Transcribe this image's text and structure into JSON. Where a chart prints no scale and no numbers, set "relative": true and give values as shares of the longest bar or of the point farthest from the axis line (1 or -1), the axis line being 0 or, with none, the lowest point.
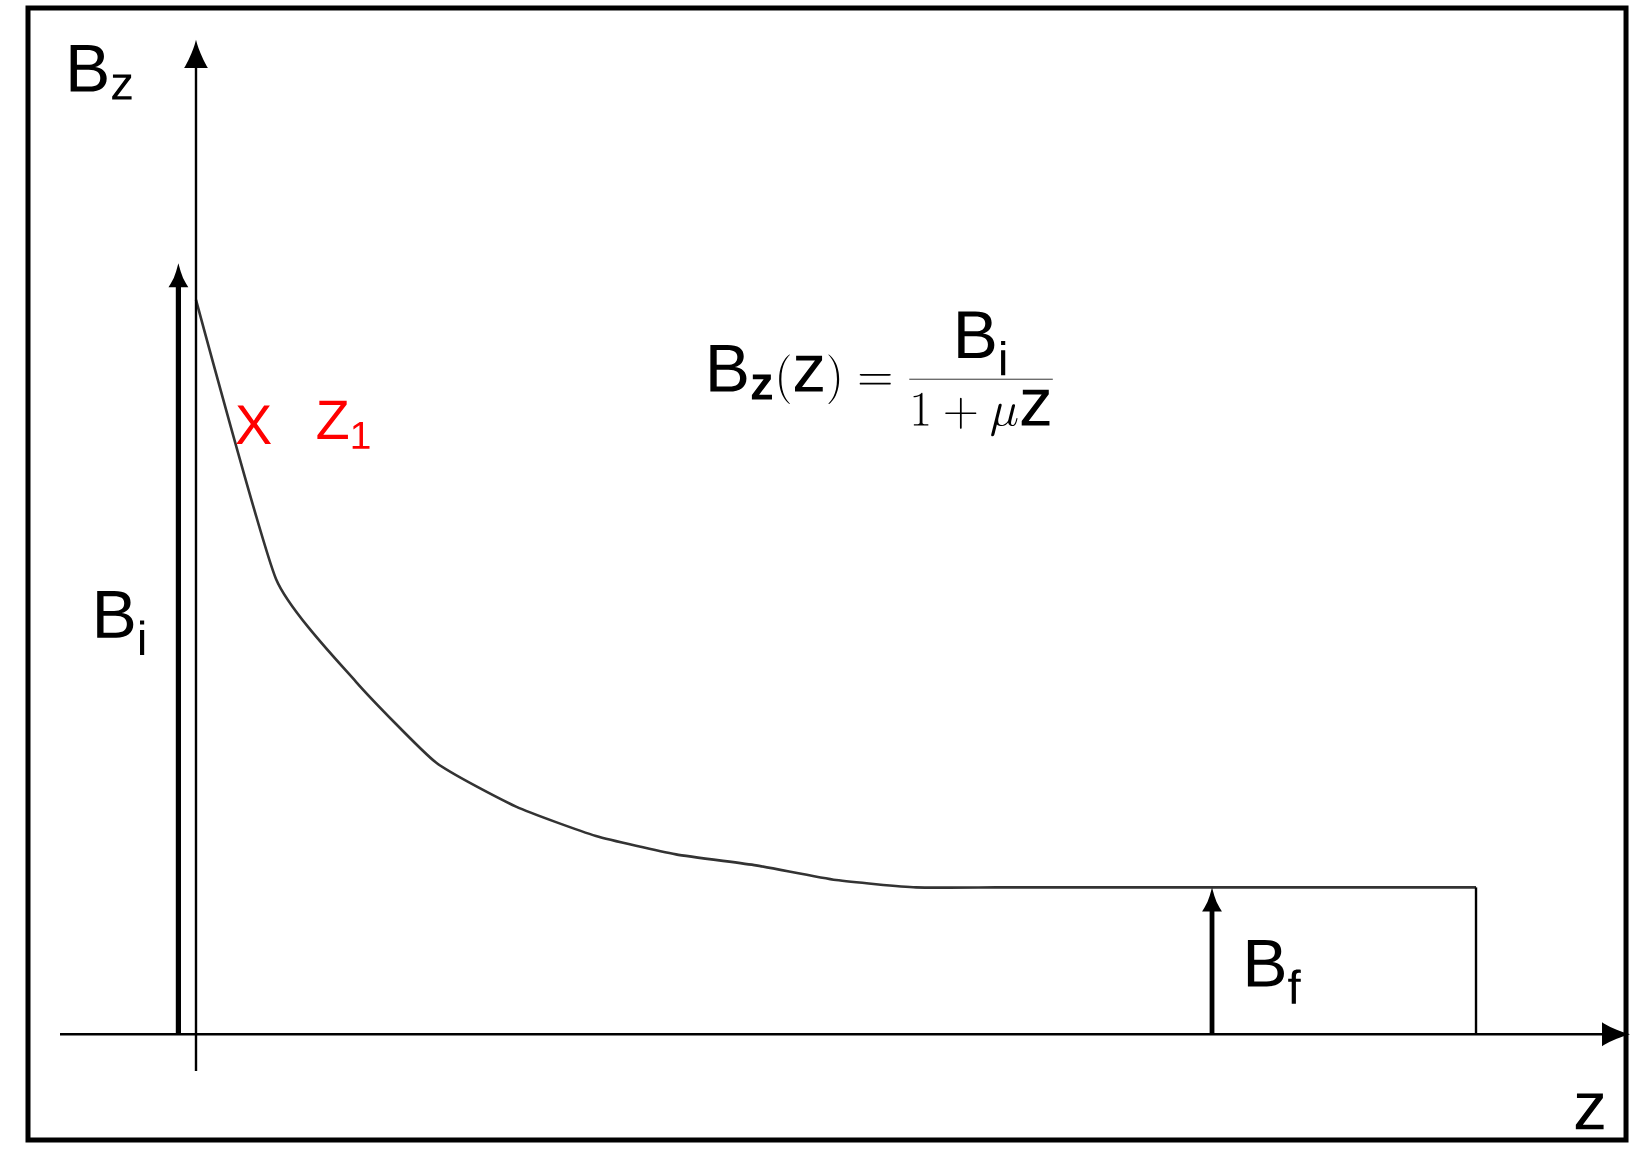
{
  "chart_data": {
    "type": "line",
    "relative": true,
    "tick_labels": false,
    "xlabel": "z",
    "ylabel": "B$_{z}$",
    "color": "#333333",
    "categories": [
      null,
      null,
      null,
      null,
      null,
      null,
      null,
      null,
      null,
      null,
      null,
      null,
      null,
      null,
      null,
      null,
      null
    ],
    "values": [
      1.0,
      0.62,
      0.48,
      0.37,
      0.31,
      0.27,
      0.245,
      0.23,
      0.21,
      0.2,
      0.2,
      0.2,
      0.2,
      0.2,
      0.2,
      0.2,
      0.2
    ],
    "annotations": [
      "B$_{i}$",
      "B$_{f}$",
      "X",
      "Z$_{1}$",
      "\\mathrm{B}_{\\mathbf{z}}(\\mathrm{z}) = \\frac{\\mathrm{B_{i}}}{1 + \\mu \\mathrm{z}}"
    ]
  }
}
